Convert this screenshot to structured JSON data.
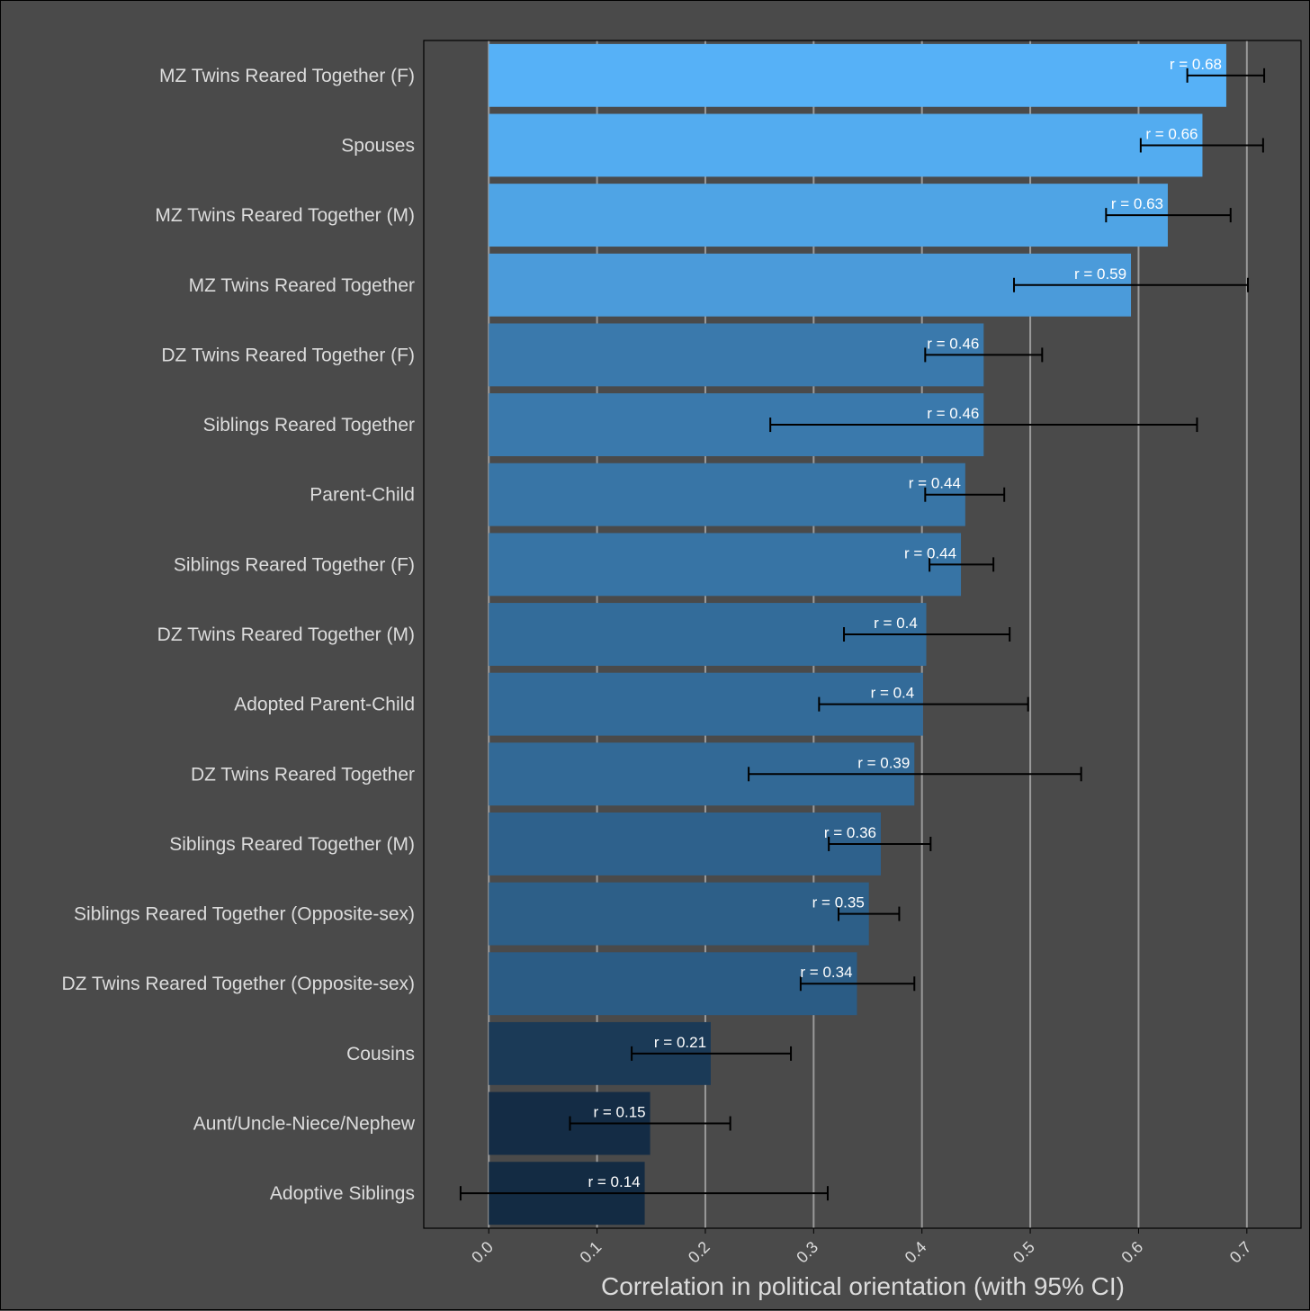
{
  "chart_data": {
    "type": "bar",
    "orientation": "horizontal",
    "xlabel": "Correlation in political orientation (with 95% CI)",
    "ylabel": "",
    "xlim": [
      -0.06,
      0.75
    ],
    "xticks": [
      "0.0",
      "0.1",
      "0.2",
      "0.3",
      "0.4",
      "0.5",
      "0.6",
      "0.7"
    ],
    "grid": true,
    "label_prefix": "r = ",
    "categories": [
      "MZ Twins Reared Together (F)",
      "Spouses",
      "MZ Twins Reared Together (M)",
      "MZ Twins Reared Together",
      "DZ Twins Reared Together (F)",
      "Siblings Reared Together",
      "Parent-Child",
      "Siblings Reared Together (F)",
      "DZ Twins Reared Together (M)",
      "Adopted Parent-Child",
      "DZ Twins Reared Together",
      "Siblings Reared Together (M)",
      "Siblings Reared Together (Opposite-sex)",
      "DZ Twins Reared Together (Opposite-sex)",
      "Cousins",
      "Aunt/Uncle-Niece/Nephew",
      "Adoptive Siblings"
    ],
    "values": [
      0.681,
      0.659,
      0.627,
      0.593,
      0.457,
      0.457,
      0.44,
      0.436,
      0.404,
      0.401,
      0.393,
      0.362,
      0.351,
      0.34,
      0.205,
      0.149,
      0.144
    ],
    "labels": [
      "0.68",
      "0.66",
      "0.63",
      "0.59",
      "0.46",
      "0.46",
      "0.44",
      "0.44",
      "0.4",
      "0.4",
      "0.39",
      "0.36",
      "0.35",
      "0.34",
      "0.21",
      "0.15",
      "0.14"
    ],
    "ci_low": [
      0.645,
      0.602,
      0.57,
      0.485,
      0.403,
      0.26,
      0.403,
      0.407,
      0.328,
      0.305,
      0.24,
      0.314,
      0.323,
      0.288,
      0.132,
      0.075,
      -0.026
    ],
    "ci_high": [
      0.716,
      0.715,
      0.685,
      0.701,
      0.511,
      0.654,
      0.476,
      0.466,
      0.481,
      0.498,
      0.547,
      0.408,
      0.379,
      0.393,
      0.279,
      0.223,
      0.313
    ]
  },
  "colors": {
    "background": "#4a4a4a",
    "grid": "#9a9a9a",
    "bar_high": "#56b1f7",
    "bar_low": "#132b43",
    "error_bar": "#000000",
    "text": "#dcdcdc"
  }
}
